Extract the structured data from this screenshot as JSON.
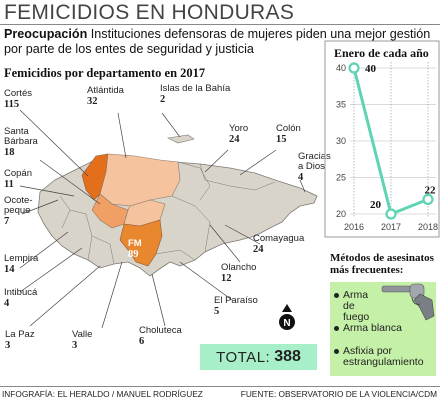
{
  "header": {
    "title": "FEMICIDIOS EN HONDURAS",
    "lede_label": "Preocupación",
    "lede_text": " Instituciones defensoras de mujeres piden una mejor gestión por parte de los entes de seguridad y justicia"
  },
  "map": {
    "title": "Femicidios por departamento en 2017",
    "departments": [
      {
        "name": "Cortés",
        "value": "115"
      },
      {
        "name": "Atlántida",
        "value": "32"
      },
      {
        "name": "Islas de la Bahía",
        "value": "2"
      },
      {
        "name": "Yoro",
        "value": "24"
      },
      {
        "name": "Colón",
        "value": "15"
      },
      {
        "name": "Santa Bárbara",
        "value": "18"
      },
      {
        "name": "Gracias a Dios",
        "value": "4"
      },
      {
        "name": "Copán",
        "value": "11"
      },
      {
        "name": "Ocote-peque",
        "value": "7"
      },
      {
        "name": "Comayagua",
        "value": "24"
      },
      {
        "name": "FM",
        "value": "89"
      },
      {
        "name": "Lempira",
        "value": "14"
      },
      {
        "name": "Olancho",
        "value": "12"
      },
      {
        "name": "Intibucá",
        "value": "4"
      },
      {
        "name": "El Paraíso",
        "value": "5"
      },
      {
        "name": "La Paz",
        "value": "3"
      },
      {
        "name": "Valle",
        "value": "3"
      },
      {
        "name": "Choluteca",
        "value": "6"
      }
    ],
    "total_label": "TOTAL:",
    "total_value": "388",
    "north_label": "N"
  },
  "chart_data": {
    "type": "line",
    "title": "Enero de cada año",
    "x": [
      "2016",
      "2017",
      "2018"
    ],
    "values": [
      40,
      20,
      22
    ],
    "ylim": [
      20,
      40
    ],
    "yticks": [
      "40",
      "35",
      "30",
      "25",
      "20"
    ],
    "line_color": "#5ed4b5"
  },
  "methods": {
    "title": "Métodos de asesinatos más frecuentes:",
    "items": [
      "Arma de fuego",
      "Arma blanca",
      "Asfixia por estrangulamiento"
    ]
  },
  "footer": {
    "credit": "INFOGRAFÍA: EL HERALDO / MANUEL RODRÍGUEZ",
    "source": "FUENTE: OBSERVATORIO DE LA VIOLENCIA/CDM"
  },
  "colors": {
    "map_base": "#d9d4c9",
    "cortes": "#e36f1a",
    "fm": "#e8872e",
    "mid": "#f0a064",
    "light": "#f5c39d",
    "total_bg": "#a7efc8",
    "methods_bg": "#c5f0a7"
  }
}
